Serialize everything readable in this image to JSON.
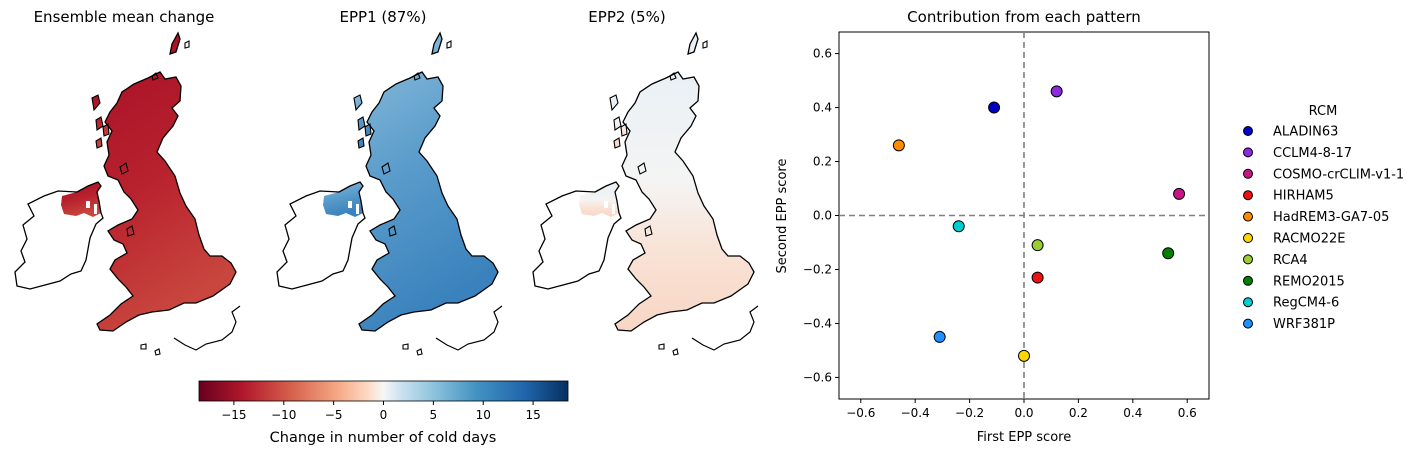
{
  "maps": {
    "titles": [
      "Ensemble mean change",
      "EPP1 (87%)",
      "EPP2 (5%)"
    ],
    "colorbar": {
      "label": "Change in number of cold days",
      "ticks": [
        "−15",
        "−10",
        "−5",
        "0",
        "5",
        "10",
        "15"
      ],
      "tick_values": [
        -15,
        -10,
        -5,
        0,
        5,
        10,
        15
      ],
      "range": [
        -18.5,
        18.5
      ],
      "colormap": "RdBu"
    }
  },
  "chart_data": {
    "type": "scatter",
    "title": "Contribution from each pattern",
    "xlabel": "First EPP score",
    "ylabel": "Second EPP score",
    "xlim": [
      -0.68,
      0.68
    ],
    "ylim": [
      -0.68,
      0.68
    ],
    "xticks": [
      -0.6,
      -0.4,
      -0.2,
      0.0,
      0.2,
      0.4,
      0.6
    ],
    "xtick_labels": [
      "−0.6",
      "−0.4",
      "−0.2",
      "0.0",
      "0.2",
      "0.4",
      "0.6"
    ],
    "yticks": [
      0.6,
      0.4,
      0.2,
      0.0,
      -0.2,
      -0.4,
      -0.6
    ],
    "ytick_labels": [
      "0.6",
      "0.4",
      "0.2",
      "0.0",
      "−0.2",
      "−0.4",
      "−0.6"
    ],
    "reference_lines": {
      "x": 0,
      "y": 0,
      "style": "dashed"
    },
    "legend": {
      "title": "RCM",
      "placement": "right"
    },
    "series": [
      {
        "name": "ALADIN63",
        "x": -0.11,
        "y": 0.4,
        "color": "#0000c8"
      },
      {
        "name": "CCLM4-8-17",
        "x": 0.12,
        "y": 0.46,
        "color": "#8a2be2"
      },
      {
        "name": "COSMO-crCLIM-v1-1",
        "x": 0.57,
        "y": 0.08,
        "color": "#c71585"
      },
      {
        "name": "HIRHAM5",
        "x": 0.05,
        "y": -0.23,
        "color": "#ee1111"
      },
      {
        "name": "HadREM3-GA7-05",
        "x": -0.46,
        "y": 0.26,
        "color": "#ff8c00"
      },
      {
        "name": "RACMO22E",
        "x": 0.0,
        "y": -0.52,
        "color": "#ffd700"
      },
      {
        "name": "RCA4",
        "x": 0.05,
        "y": -0.11,
        "color": "#9acd32"
      },
      {
        "name": "REMO2015",
        "x": 0.53,
        "y": -0.14,
        "color": "#008000"
      },
      {
        "name": "RegCM4-6",
        "x": -0.24,
        "y": -0.04,
        "color": "#00ced1"
      },
      {
        "name": "WRF381P",
        "x": -0.31,
        "y": -0.45,
        "color": "#1e90ff"
      }
    ]
  }
}
